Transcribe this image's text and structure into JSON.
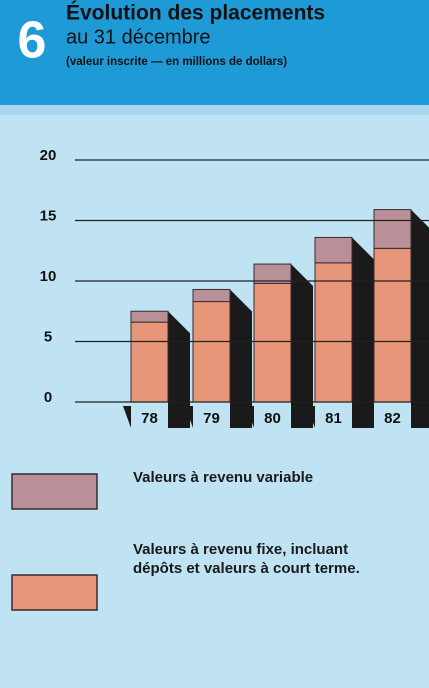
{
  "chart_data": {
    "type": "bar",
    "stacked": true,
    "figure_number": "6",
    "title": "Évolution des placements",
    "subtitle": "au 31 décembre",
    "note": "(valeur inscrite — en millions de dollars)",
    "categories": [
      "78",
      "79",
      "80",
      "81",
      "82"
    ],
    "series": [
      {
        "name": "Valeurs à revenu fixe, incluant dépôts et valeurs à court terme.",
        "color": "#e8967a",
        "values": [
          6.6,
          8.3,
          9.8,
          11.5,
          12.7
        ]
      },
      {
        "name": "Valeurs à revenu variable",
        "color": "#b99098",
        "values": [
          0.9,
          1.0,
          1.6,
          2.1,
          3.2
        ]
      }
    ],
    "ylim": [
      0,
      20
    ],
    "yticks": [
      0,
      5,
      10,
      15,
      20
    ],
    "grid": true
  }
}
